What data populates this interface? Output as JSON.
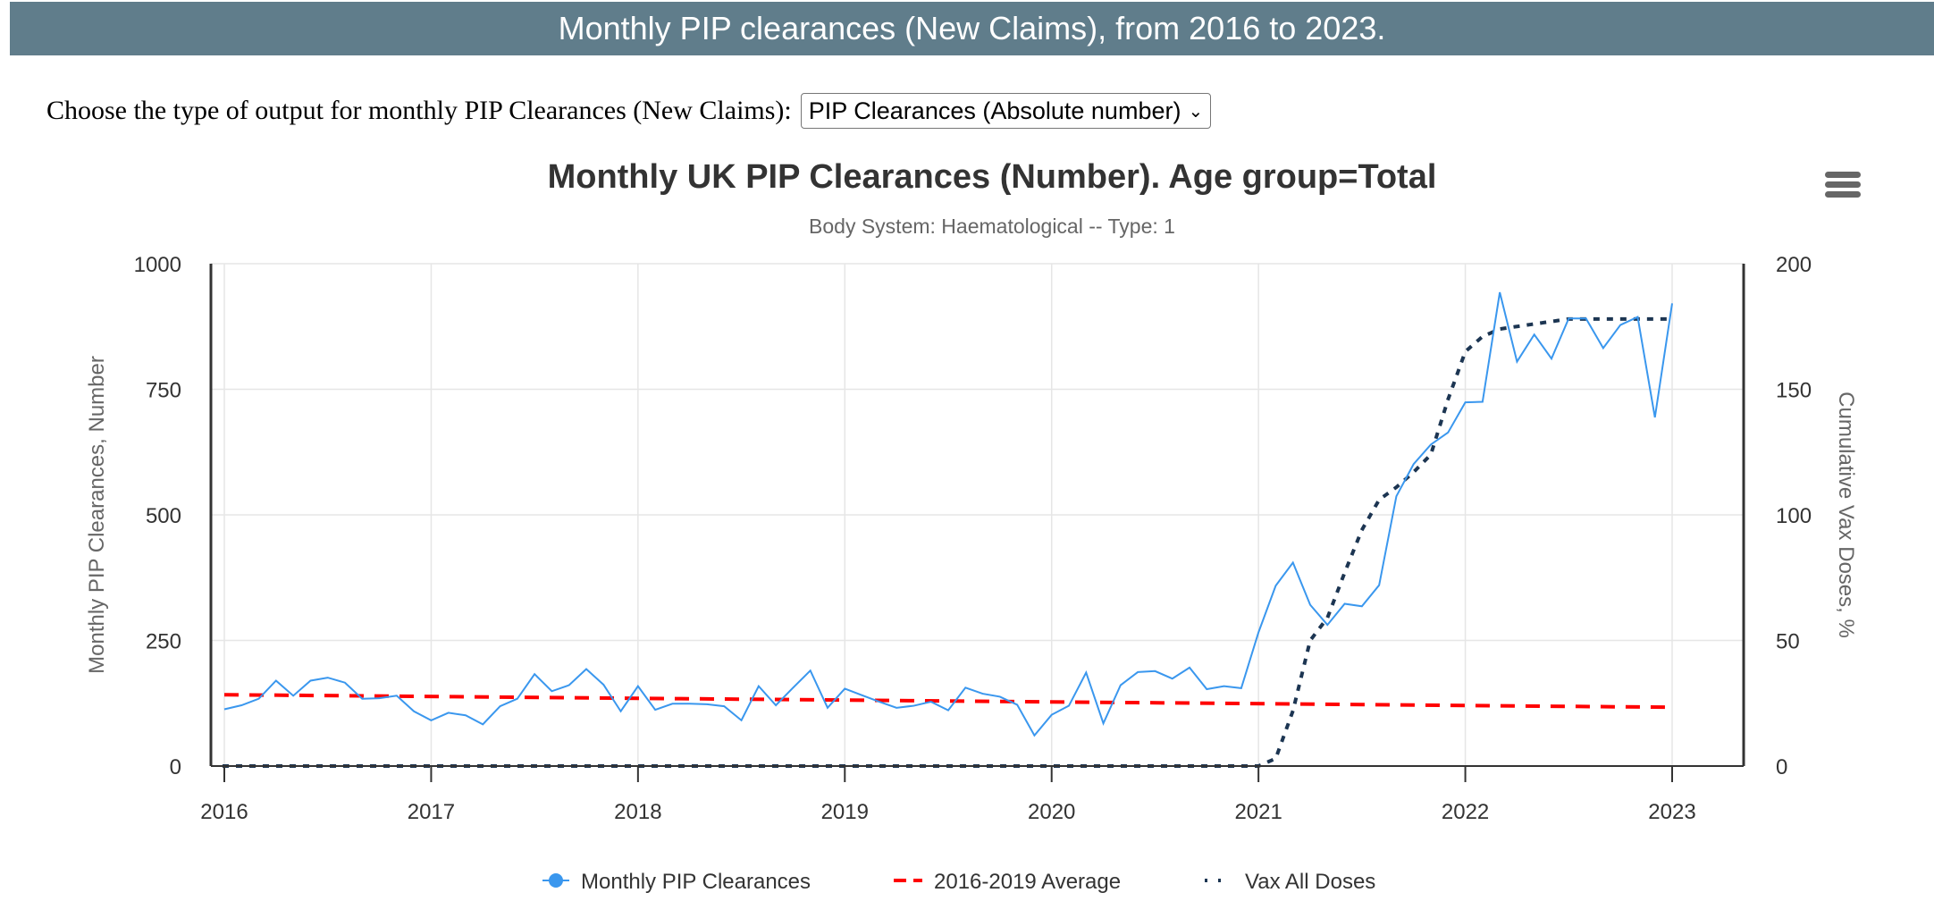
{
  "banner": {
    "title": "Monthly PIP clearances (New Claims), from 2016 to 2023."
  },
  "chooser": {
    "label": "Choose the type of output for monthly PIP Clearances (New Claims):",
    "selected": "PIP Clearances (Absolute number)"
  },
  "menu": {
    "icon": "hamburger-menu-icon"
  },
  "colors": {
    "clearances": "#3a97ee",
    "average": "#ff0000",
    "vax": "#1c3552",
    "banner": "#607d8b"
  },
  "chart_data": {
    "type": "line",
    "title": "Monthly UK PIP Clearances (Number). Age group=Total",
    "subtitle": "Body System: Haematological -- Type: 1",
    "ylabel": "Monthly PIP Clearances, Number",
    "y2label": "Cumulative Vax Doses, %",
    "ylim": [
      0,
      1000
    ],
    "y2lim": [
      0,
      200
    ],
    "yticks": [
      "0",
      "250",
      "500",
      "750",
      "1000"
    ],
    "y2ticks": [
      "0",
      "50",
      "100",
      "150",
      "200"
    ],
    "xticks": [
      "2016",
      "2017",
      "2018",
      "2019",
      "2020",
      "2021",
      "2022",
      "2023"
    ],
    "x_start": "2016-01",
    "x_step": "month",
    "grid": true,
    "legend_position": "bottom-center",
    "series": [
      {
        "name": "Monthly PIP Clearances",
        "axis": "left",
        "values": [
          113,
          121,
          134,
          170,
          140,
          170,
          176,
          166,
          134,
          135,
          140,
          109,
          91,
          106,
          101,
          83,
          119,
          134,
          183,
          149,
          161,
          193,
          162,
          109,
          159,
          112,
          124,
          124,
          123,
          119,
          91,
          159,
          121,
          156,
          190,
          116,
          154,
          141,
          128,
          116,
          120,
          128,
          111,
          156,
          144,
          138,
          122,
          61,
          102,
          120,
          186,
          85,
          161,
          187,
          189,
          174,
          196,
          153,
          159,
          155,
          266,
          359,
          405,
          321,
          281,
          323,
          318,
          360,
          537,
          601,
          640,
          664,
          724,
          725,
          943,
          805,
          859,
          811,
          891,
          891,
          832,
          878,
          894,
          694,
          921
        ]
      },
      {
        "name": "2016-2019 Average",
        "axis": "left",
        "values_start_end": [
          142,
          117
        ]
      },
      {
        "name": "Vax All Doses",
        "axis": "right",
        "values": [
          0,
          0,
          0,
          0,
          0,
          0,
          0,
          0,
          0,
          0,
          0,
          0,
          0,
          0,
          0,
          0,
          0,
          0,
          0,
          0,
          0,
          0,
          0,
          0,
          0,
          0,
          0,
          0,
          0,
          0,
          0,
          0,
          0,
          0,
          0,
          0,
          0,
          0,
          0,
          0,
          0,
          0,
          0,
          0,
          0,
          0,
          0,
          0,
          0,
          0,
          0,
          0,
          0,
          0,
          0,
          0,
          0,
          0,
          0,
          0,
          0,
          3,
          22,
          50,
          59,
          77,
          94,
          106,
          111,
          117,
          124,
          146,
          165,
          171,
          174,
          175,
          176,
          177,
          178,
          178,
          178,
          178,
          178,
          178,
          178
        ]
      }
    ]
  }
}
